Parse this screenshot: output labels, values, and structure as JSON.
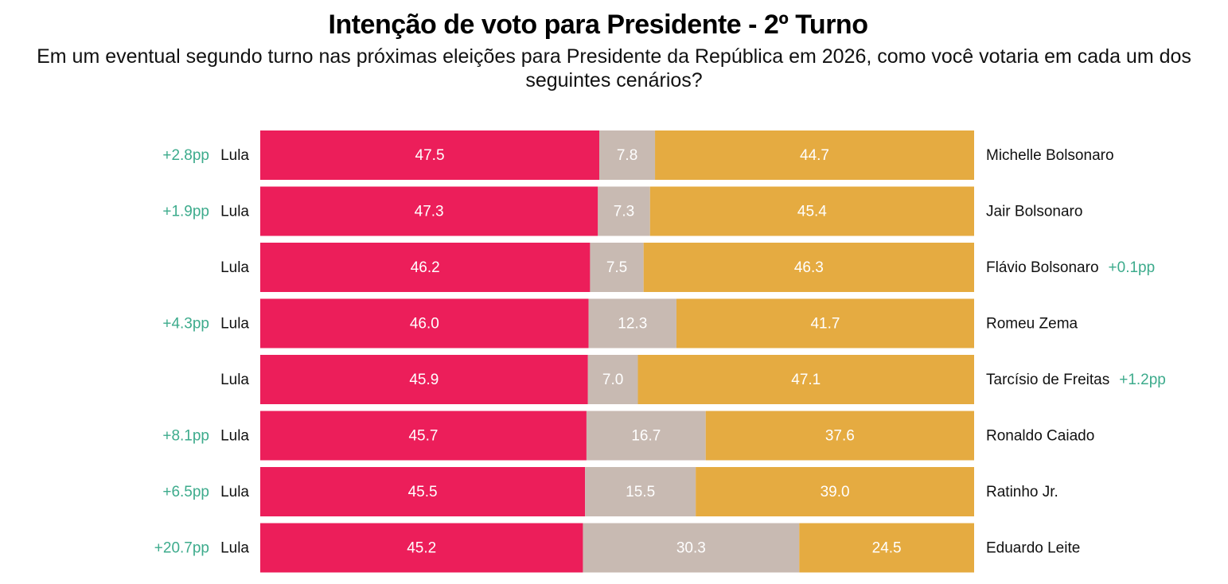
{
  "chart_data": {
    "type": "bar",
    "orientation": "horizontal",
    "stacked": true,
    "title": "Intenção de voto para Presidente - 2º Turno",
    "subtitle": "Em um eventual segundo turno nas próximas eleições para Presidente da República em 2026, como você votaria em cada um dos seguintes cenários?",
    "left_labels": [
      "Lula",
      "Lula",
      "Lula",
      "Lula",
      "Lula",
      "Lula",
      "Lula",
      "Lula"
    ],
    "categories": [
      "Michelle Bolsonaro",
      "Jair Bolsonaro",
      "Flávio Bolsonaro",
      "Romeu Zema",
      "Tarcísio de Freitas",
      "Ronaldo Caiado",
      "Ratinho Jr.",
      "Eduardo Leite"
    ],
    "left_annotations": [
      "+2.8pp",
      "+1.9pp",
      null,
      "+4.3pp",
      null,
      "+8.1pp",
      "+6.5pp",
      "+20.7pp"
    ],
    "right_annotations": [
      null,
      null,
      "+0.1pp",
      null,
      "+1.2pp",
      null,
      null,
      null
    ],
    "annotation_color": "#3dab8c",
    "xlim": [
      0,
      100
    ],
    "series": [
      {
        "color": "#ec1e5a",
        "values": [
          47.5,
          47.3,
          46.2,
          46.0,
          45.9,
          45.7,
          45.5,
          45.2
        ],
        "value_labels": [
          "47.5",
          "47.3",
          "46.2",
          "46.0",
          "45.9",
          "45.7",
          "45.5",
          "45.2"
        ]
      },
      {
        "color": "#c8bab2",
        "values": [
          7.8,
          7.3,
          7.5,
          12.3,
          7.0,
          16.7,
          15.5,
          30.3
        ],
        "value_labels": [
          "7.8",
          "7.3",
          "7.5",
          "12.3",
          "7.0",
          "16.7",
          "15.5",
          "30.3"
        ]
      },
      {
        "color": "#e5ab41",
        "values": [
          44.7,
          45.4,
          46.3,
          41.7,
          47.1,
          37.6,
          39.0,
          24.5
        ],
        "value_labels": [
          "44.7",
          "45.4",
          "46.3",
          "41.7",
          "47.1",
          "37.6",
          "39.0",
          "24.5"
        ]
      }
    ]
  }
}
